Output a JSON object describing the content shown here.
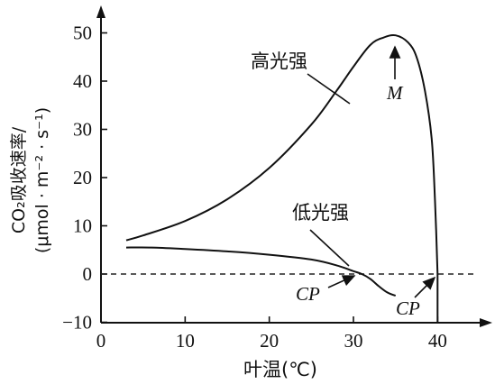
{
  "chart_data": {
    "type": "line",
    "xlabel": "叶温(℃)",
    "ylabel_line1": "CO₂吸收速率/",
    "ylabel_line2": "(μmol · m⁻² · s⁻¹)",
    "xlim": [
      0,
      45
    ],
    "ylim": [
      -10,
      55
    ],
    "xticks": [
      0,
      10,
      20,
      30,
      40
    ],
    "yticks": [
      -10,
      0,
      10,
      20,
      30,
      40,
      50
    ],
    "series": [
      {
        "name": "高光强",
        "x": [
          3,
          5,
          10,
          15,
          20,
          25,
          28,
          30,
          32,
          33.5,
          35,
          36.5,
          37.5,
          38.5,
          39.3,
          39.7,
          40
        ],
        "y": [
          7,
          8,
          11,
          15.5,
          22,
          31,
          38,
          43,
          47.5,
          49,
          49.5,
          48,
          45,
          38,
          28,
          15,
          0
        ]
      },
      {
        "name": "低光强",
        "x": [
          3,
          6,
          10,
          15,
          20,
          25,
          28,
          30,
          31,
          32,
          33,
          34,
          35
        ],
        "y": [
          5.5,
          5.5,
          5.2,
          4.7,
          4.0,
          3.0,
          1.8,
          0.6,
          0,
          -1.0,
          -2.5,
          -3.8,
          -4.5
        ]
      }
    ],
    "annotations": {
      "high_label": "高光强",
      "low_label": "低光强",
      "M": "M",
      "CP": "CP"
    },
    "points": {
      "M": {
        "x": 35,
        "y": 49.5
      },
      "cp_low": {
        "x": 31,
        "y": 0
      },
      "cp_high": {
        "x": 40,
        "y": 0
      }
    }
  }
}
